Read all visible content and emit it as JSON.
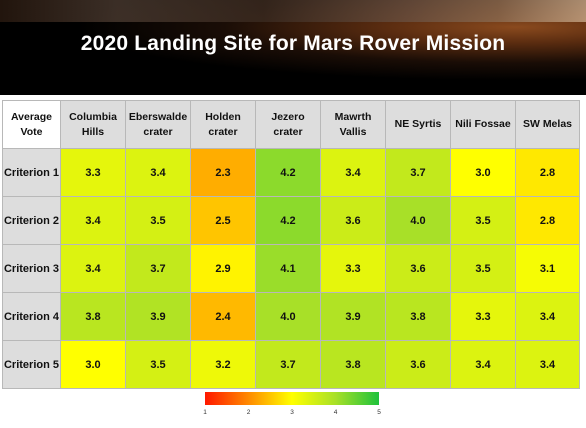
{
  "header": {
    "title": "2020 Landing Site for Mars Rover Mission"
  },
  "chart_data": {
    "type": "heatmap",
    "corner_label": "Average Vote",
    "columns": [
      "Columbia Hills",
      "Eberswalde crater",
      "Holden crater",
      "Jezero crater",
      "Mawrth Vallis",
      "NE Syrtis",
      "Nili Fossae",
      "SW Melas"
    ],
    "rows": [
      "Criterion 1",
      "Criterion 2",
      "Criterion 3",
      "Criterion 4",
      "Criterion 5"
    ],
    "values": [
      [
        3.3,
        3.4,
        2.3,
        4.2,
        3.4,
        3.7,
        3.0,
        2.8
      ],
      [
        3.4,
        3.5,
        2.5,
        4.2,
        3.6,
        4.0,
        3.5,
        2.8
      ],
      [
        3.4,
        3.7,
        2.9,
        4.1,
        3.3,
        3.6,
        3.5,
        3.1
      ],
      [
        3.8,
        3.9,
        2.4,
        4.0,
        3.9,
        3.8,
        3.3,
        3.4
      ],
      [
        3.0,
        3.5,
        3.2,
        3.7,
        3.8,
        3.6,
        3.4,
        3.4
      ]
    ],
    "color_scale": {
      "min": 1,
      "max": 5,
      "colors": [
        "#ff1800",
        "#ff8a00",
        "#ffff00",
        "#a8e028",
        "#1ec23c"
      ],
      "ticks": [
        "1",
        "2",
        "3",
        "4",
        "5"
      ]
    }
  }
}
